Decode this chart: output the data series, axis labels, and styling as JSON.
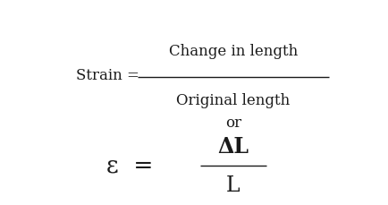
{
  "background_color": "#ffffff",
  "text_color": "#1a1a1a",
  "strain_label": "Strain = ",
  "numerator": "Change in length",
  "denominator": "Original length",
  "or_text": "or",
  "epsilon_label": "ε  =",
  "frac_numerator": "ΔL",
  "frac_denominator": "L",
  "fig_width": 4.35,
  "fig_height": 2.29,
  "dpi": 100,
  "font_size_main": 12,
  "font_size_epsilon": 19,
  "font_size_delta": 17
}
